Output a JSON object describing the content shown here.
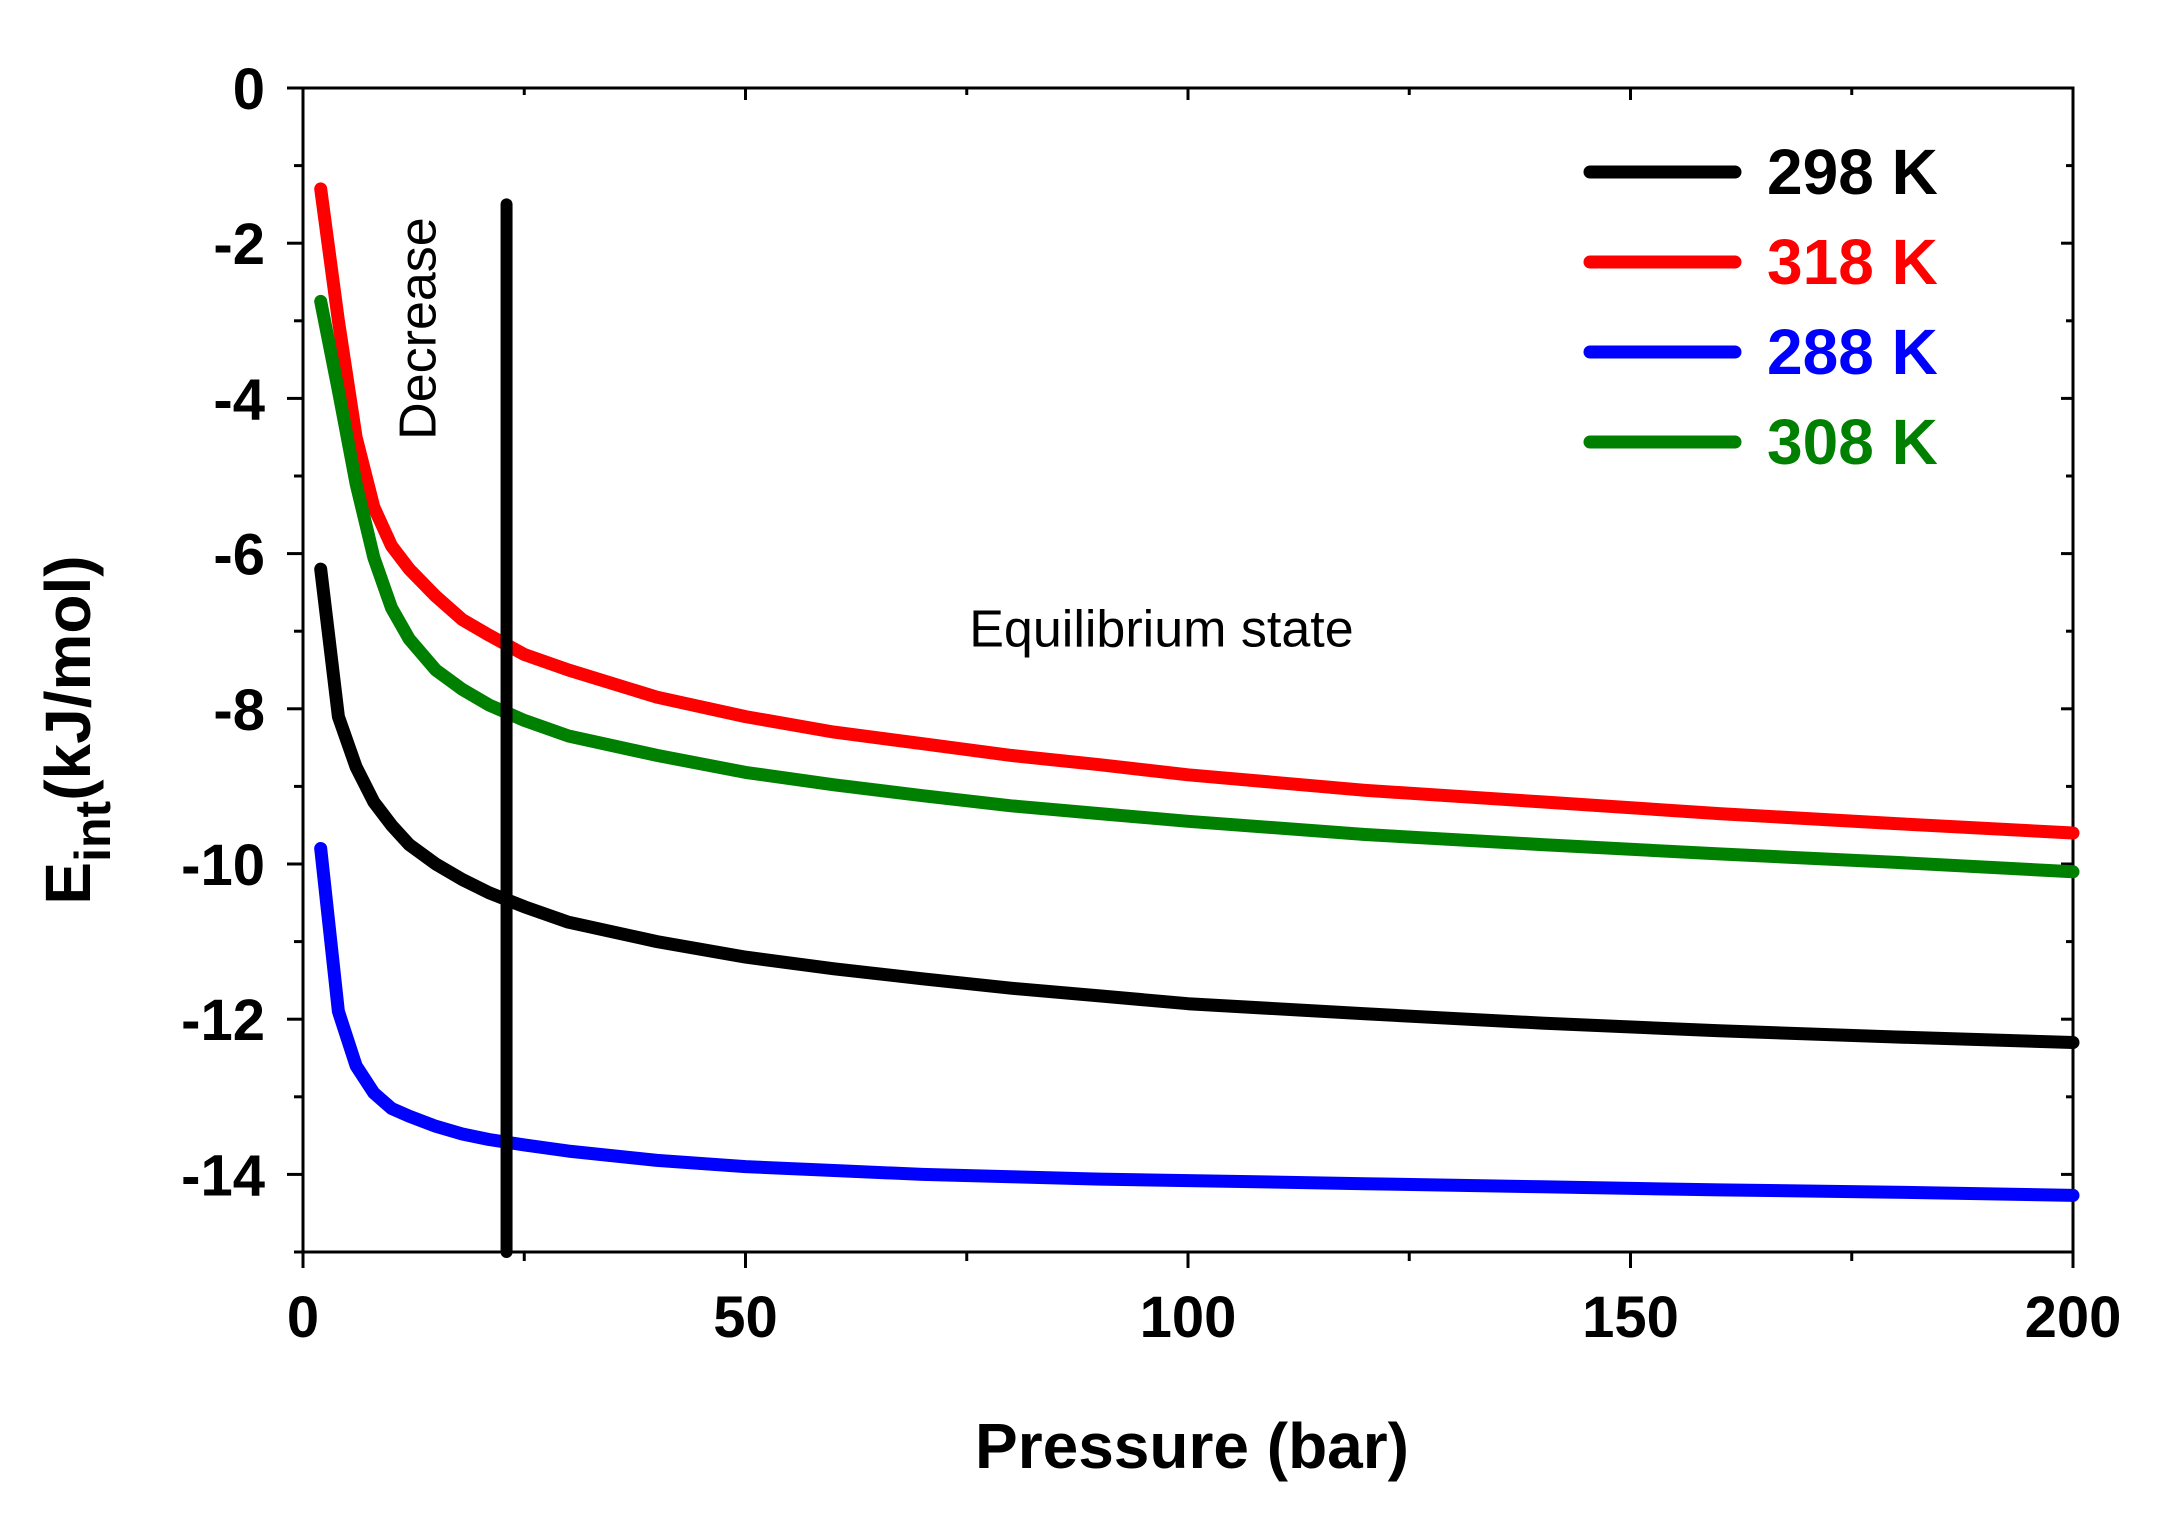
{
  "chart_data": {
    "type": "line",
    "title": "",
    "xlabel": "Pressure (bar)",
    "ylabel": {
      "main": "E",
      "sub": "int",
      "unit": "(kJ/mol)"
    },
    "xlim": [
      0,
      200
    ],
    "ylim": [
      -15,
      0
    ],
    "xticks": [
      0,
      50,
      100,
      150,
      200
    ],
    "xtick_labels": [
      "0",
      "50",
      "100",
      "150",
      "200"
    ],
    "yticks": [
      0,
      -2,
      -4,
      -6,
      -8,
      -10,
      -12,
      -14
    ],
    "ytick_labels": [
      "0",
      "-2",
      "-4",
      "-6",
      "-8",
      "-10",
      "-12",
      "-14"
    ],
    "grid": false,
    "legend_position": "top-right",
    "x": [
      2,
      4,
      6,
      8,
      10,
      12,
      15,
      18,
      21,
      25,
      30,
      40,
      50,
      60,
      70,
      80,
      90,
      100,
      120,
      140,
      160,
      180,
      200
    ],
    "series": [
      {
        "name": "298 K",
        "color": "#000000",
        "values": [
          -6.2,
          -8.1,
          -8.75,
          -9.2,
          -9.5,
          -9.75,
          -10.0,
          -10.2,
          -10.37,
          -10.55,
          -10.75,
          -11.0,
          -11.2,
          -11.35,
          -11.48,
          -11.6,
          -11.7,
          -11.8,
          -11.93,
          -12.05,
          -12.15,
          -12.23,
          -12.3
        ]
      },
      {
        "name": "318 K",
        "color": "#ff0000",
        "values": [
          -1.3,
          -3.0,
          -4.5,
          -5.4,
          -5.9,
          -6.2,
          -6.55,
          -6.85,
          -7.05,
          -7.3,
          -7.5,
          -7.85,
          -8.1,
          -8.3,
          -8.45,
          -8.6,
          -8.72,
          -8.85,
          -9.05,
          -9.2,
          -9.35,
          -9.48,
          -9.6
        ]
      },
      {
        "name": "288 K",
        "color": "#0000ff",
        "values": [
          -9.8,
          -11.9,
          -12.6,
          -12.95,
          -13.15,
          -13.25,
          -13.38,
          -13.48,
          -13.55,
          -13.62,
          -13.7,
          -13.82,
          -13.9,
          -13.95,
          -14.0,
          -14.03,
          -14.06,
          -14.08,
          -14.12,
          -14.16,
          -14.2,
          -14.23,
          -14.27
        ]
      },
      {
        "name": "308 K",
        "color": "#008000",
        "values": [
          -2.75,
          -3.9,
          -5.1,
          -6.05,
          -6.7,
          -7.1,
          -7.5,
          -7.75,
          -7.95,
          -8.15,
          -8.35,
          -8.6,
          -8.82,
          -8.98,
          -9.12,
          -9.25,
          -9.35,
          -9.45,
          -9.62,
          -9.75,
          -9.87,
          -9.98,
          -10.1
        ]
      }
    ],
    "divider": {
      "x": 23,
      "y_top": -1.5,
      "y_bottom": -15
    },
    "annotations": [
      {
        "text": "Decrease",
        "x": 15,
        "y": -3.1,
        "rotation": -90
      },
      {
        "text": "Equilibrium state",
        "x": 97,
        "y": -7.2
      }
    ]
  }
}
